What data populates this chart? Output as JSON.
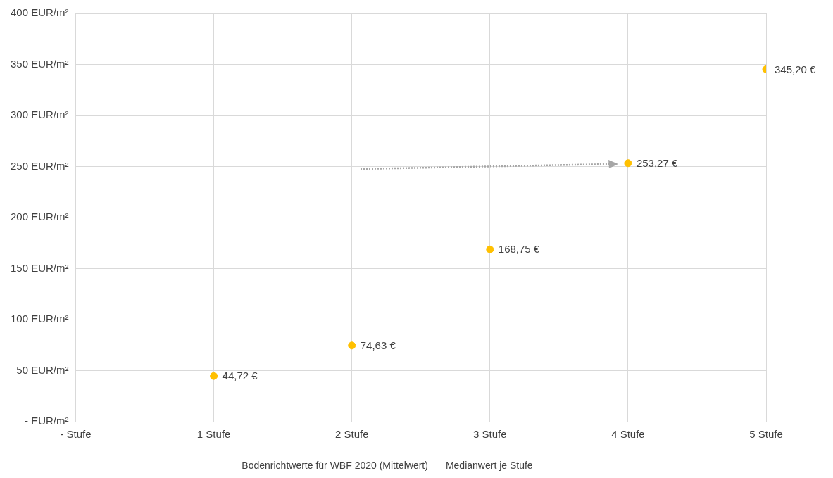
{
  "chart_data": {
    "type": "scatter",
    "x": [
      1,
      2,
      3,
      4,
      5
    ],
    "series": [
      {
        "name": "Bodenrichtwerte für WBF 2020 (Mittelwert)",
        "values": [
          null,
          null,
          null,
          null,
          null
        ]
      },
      {
        "name": "Medianwert je Stufe",
        "color": "#ffc000",
        "values": [
          44.72,
          74.63,
          168.75,
          253.27,
          345.2
        ],
        "value_labels": [
          "44,72 €",
          "74,63 €",
          "168,75 €",
          "253,27 €",
          "345,20 €"
        ]
      }
    ],
    "xlim": [
      0,
      5
    ],
    "xticks": [
      {
        "value": 0,
        "label": "- Stufe"
      },
      {
        "value": 1,
        "label": "1 Stufe"
      },
      {
        "value": 2,
        "label": "2 Stufe"
      },
      {
        "value": 3,
        "label": "3 Stufe"
      },
      {
        "value": 4,
        "label": "4 Stufe"
      },
      {
        "value": 5,
        "label": "5 Stufe"
      }
    ],
    "ylim": [
      0,
      400
    ],
    "yticks": [
      {
        "value": 0,
        "label": "- EUR/m²"
      },
      {
        "value": 50,
        "label": "50 EUR/m²"
      },
      {
        "value": 100,
        "label": "100 EUR/m²"
      },
      {
        "value": 150,
        "label": "150 EUR/m²"
      },
      {
        "value": 200,
        "label": "200 EUR/m²"
      },
      {
        "value": 250,
        "label": "250 EUR/m²"
      },
      {
        "value": 300,
        "label": "300 EUR/m²"
      },
      {
        "value": 350,
        "label": "350 EUR/m²"
      },
      {
        "value": 400,
        "label": "400 EUR/m²"
      }
    ],
    "grid": true,
    "legend": "bottom",
    "marker": "circle"
  }
}
